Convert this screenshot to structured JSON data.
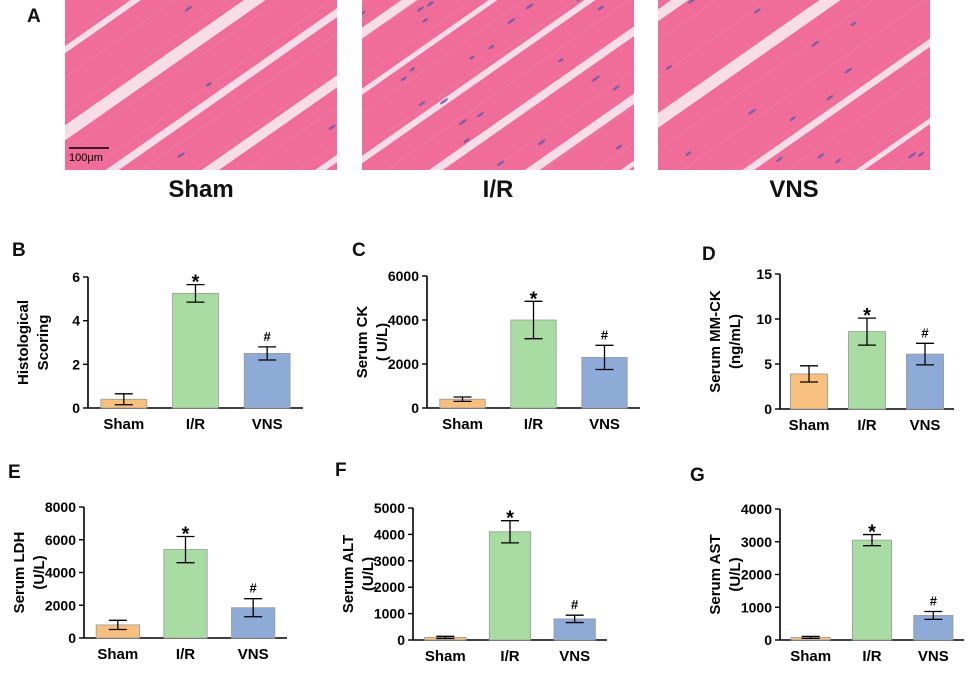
{
  "panel_a": {
    "letter": "A",
    "scale_bar": "100μm",
    "groups": [
      "Sham",
      "I/R",
      "VNS"
    ],
    "stain_colors": {
      "background": "#e8829f",
      "fiber": "#f06d9a",
      "gap": "#f7dde6",
      "nuclei": "#6a5aa8"
    }
  },
  "bar_colors": [
    "#f8c07f",
    "#a8dca2",
    "#8eaad6"
  ],
  "chart_data": [
    {
      "letter": "B",
      "type": "bar",
      "categories": [
        "Sham",
        "I/R",
        "VNS"
      ],
      "values": [
        0.4,
        5.25,
        2.5
      ],
      "errors": [
        0.25,
        0.4,
        0.3
      ],
      "annotations": [
        "",
        "*",
        "#"
      ],
      "ylabel": [
        "Histological",
        "Scoring"
      ],
      "ylim": [
        0,
        6
      ],
      "yticks": [
        0,
        2,
        4,
        6
      ],
      "ytick_labels": [
        "0",
        "2",
        "4",
        "6"
      ]
    },
    {
      "letter": "C",
      "type": "bar",
      "categories": [
        "Sham",
        "I/R",
        "VNS"
      ],
      "values": [
        400,
        4000,
        2300
      ],
      "errors": [
        100,
        850,
        550
      ],
      "annotations": [
        "",
        "*",
        "#"
      ],
      "ylabel": [
        "Serum CK",
        "( U/L)"
      ],
      "ylim": [
        0,
        6000
      ],
      "yticks": [
        0,
        2000,
        4000,
        6000
      ],
      "ytick_labels": [
        "0",
        "2000",
        "4000",
        "6000"
      ]
    },
    {
      "letter": "D",
      "type": "bar",
      "categories": [
        "Sham",
        "I/R",
        "VNS"
      ],
      "values": [
        3.9,
        8.6,
        6.1
      ],
      "errors": [
        0.9,
        1.5,
        1.2
      ],
      "annotations": [
        "",
        "*",
        "#"
      ],
      "ylabel": [
        "Serum MM-CK",
        "(ng/mL)"
      ],
      "ylim": [
        0,
        15
      ],
      "yticks": [
        0,
        5,
        10,
        15
      ],
      "ytick_labels": [
        "0",
        "5",
        "10",
        "15"
      ]
    },
    {
      "letter": "E",
      "type": "bar",
      "categories": [
        "Sham",
        "I/R",
        "VNS"
      ],
      "values": [
        800,
        5400,
        1850
      ],
      "errors": [
        280,
        800,
        550
      ],
      "annotations": [
        "",
        "*",
        "#"
      ],
      "ylabel": [
        "Serum LDH",
        "(U/L)"
      ],
      "ylim": [
        0,
        8000
      ],
      "yticks": [
        0,
        2000,
        4000,
        6000,
        8000
      ],
      "ytick_labels": [
        "0",
        "2000",
        "4000",
        "6000",
        "8000"
      ]
    },
    {
      "letter": "F",
      "type": "bar",
      "categories": [
        "Sham",
        "I/R",
        "VNS"
      ],
      "values": [
        100,
        4100,
        800
      ],
      "errors": [
        40,
        420,
        140
      ],
      "annotations": [
        "",
        "*",
        "#"
      ],
      "ylabel": [
        "Serum  ALT",
        "(U/L)"
      ],
      "ylim": [
        0,
        5000
      ],
      "yticks": [
        0,
        1000,
        2000,
        3000,
        4000,
        5000
      ],
      "ytick_labels": [
        "0",
        "1000",
        "2000",
        "3000",
        "4000",
        "5000"
      ]
    },
    {
      "letter": "G",
      "type": "bar",
      "categories": [
        "Sham",
        "I/R",
        "VNS"
      ],
      "values": [
        80,
        3050,
        750
      ],
      "errors": [
        30,
        170,
        120
      ],
      "annotations": [
        "",
        "*",
        "#"
      ],
      "ylabel": [
        "Serum AST",
        "(U/L)"
      ],
      "ylim": [
        0,
        4000
      ],
      "yticks": [
        0,
        1000,
        2000,
        3000,
        4000
      ],
      "ytick_labels": [
        "0",
        "1000",
        "2000",
        "3000",
        "4000"
      ]
    }
  ]
}
